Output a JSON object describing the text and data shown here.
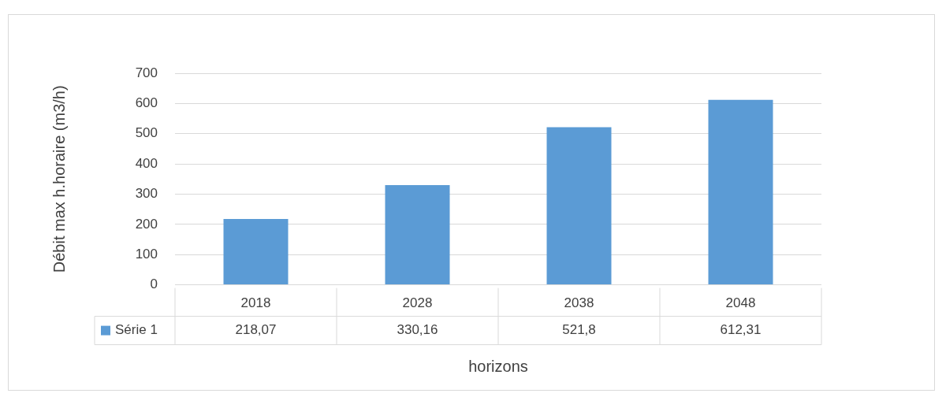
{
  "chart_data": {
    "type": "bar",
    "xlabel": "horizons",
    "ylabel": "Débit max h.horaire (m3/h)",
    "categories": [
      "2018",
      "2028",
      "2038",
      "2048"
    ],
    "series": [
      {
        "name": "Série 1",
        "color": "#5b9bd5",
        "values": [
          218.07,
          330.16,
          521.8,
          612.31
        ],
        "value_labels": [
          "218,07",
          "330,16",
          "521,8",
          "612,31"
        ]
      }
    ],
    "ylim": [
      0,
      700
    ],
    "yticks": [
      0,
      100,
      200,
      300,
      400,
      500,
      600,
      700
    ],
    "grid": "y",
    "legend": "bottom left"
  }
}
